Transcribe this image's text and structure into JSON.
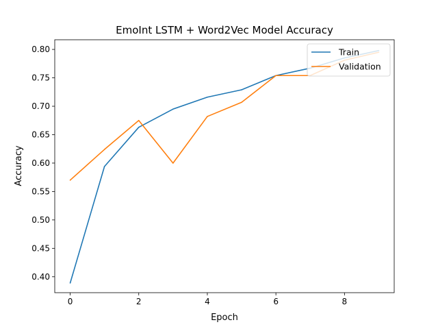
{
  "chart_data": {
    "type": "line",
    "title": "EmoInt LSTM + Word2Vec Model Accuracy",
    "xlabel": "Epoch",
    "ylabel": "Accuracy",
    "x": [
      0,
      1,
      2,
      3,
      4,
      5,
      6,
      7,
      8,
      9
    ],
    "xlim": [
      -0.45,
      9.45
    ],
    "ylim": [
      0.372,
      0.817
    ],
    "xticks": [
      0,
      2,
      4,
      6,
      8
    ],
    "yticks": [
      0.4,
      0.45,
      0.5,
      0.55,
      0.6,
      0.65,
      0.7,
      0.75,
      0.8
    ],
    "grid": false,
    "legend_position": "top-right",
    "series": [
      {
        "name": "Train",
        "color": "#1f77b4",
        "values": [
          0.389,
          0.594,
          0.663,
          0.695,
          0.716,
          0.729,
          0.754,
          0.767,
          0.785,
          0.798
        ]
      },
      {
        "name": "Validation",
        "color": "#ff7f0e",
        "values": [
          0.57,
          0.624,
          0.675,
          0.6,
          0.682,
          0.707,
          0.754,
          0.754,
          0.781,
          0.795
        ]
      }
    ]
  }
}
